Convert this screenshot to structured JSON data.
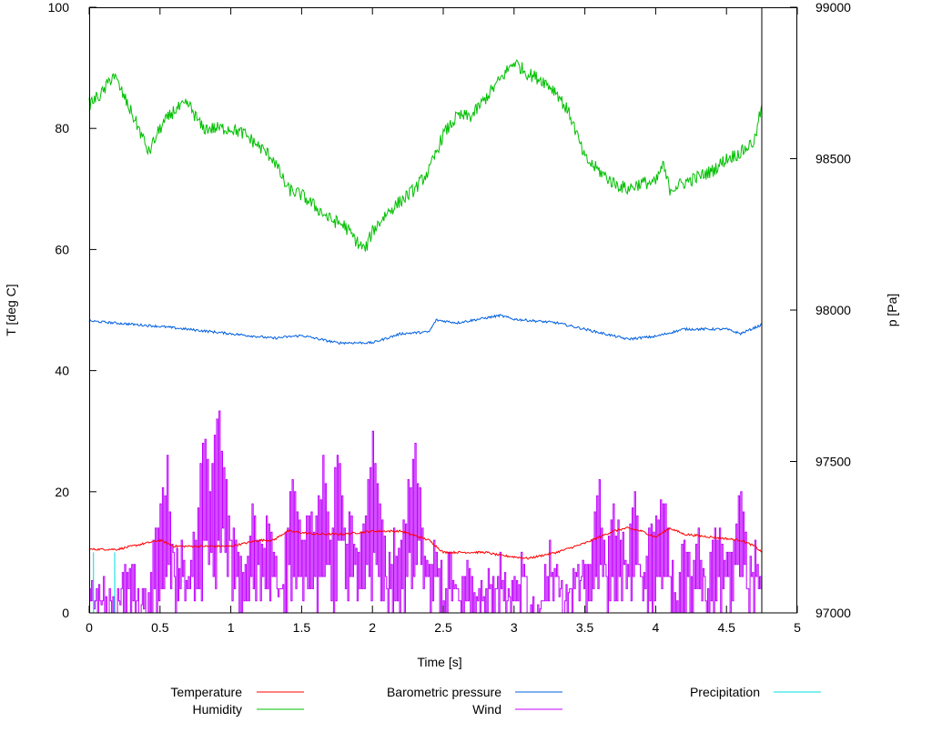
{
  "chart_data": {
    "type": "line",
    "title": "",
    "xlabel": "Time [s]",
    "ylabel": "T [deg C]",
    "y2label": "p [Pa]",
    "xlim": [
      0,
      5
    ],
    "ylim": [
      0,
      100
    ],
    "y2lim": [
      97000,
      99000
    ],
    "xticks": [
      "0",
      "0.5",
      "1",
      "1.5",
      "2",
      "2.5",
      "3",
      "3.5",
      "4",
      "4.5",
      "5"
    ],
    "yticks": [
      "0",
      "20",
      "40",
      "60",
      "80",
      "100"
    ],
    "y2ticks": [
      "97000",
      "97500",
      "98000",
      "98500",
      "99000"
    ],
    "grid": false,
    "legend_position": "bottom",
    "series": [
      {
        "name": "Temperature",
        "color": "#ff0000",
        "axis": "y",
        "x": [
          0,
          0.2,
          0.3,
          0.5,
          0.6,
          0.75,
          0.9,
          1.0,
          1.2,
          1.3,
          1.4,
          1.6,
          1.8,
          2.0,
          2.2,
          2.4,
          2.5,
          2.8,
          2.9,
          3.1,
          3.3,
          3.5,
          3.7,
          3.8,
          3.9,
          4.0,
          4.1,
          4.2,
          4.4,
          4.6,
          4.7,
          4.75
        ],
        "y": [
          10.5,
          10.5,
          11,
          12,
          11,
          11,
          11,
          11,
          12,
          12,
          13.5,
          13,
          13,
          13.5,
          13.5,
          12,
          10,
          10,
          9.5,
          9,
          10,
          11.5,
          13.5,
          14,
          13.5,
          12.5,
          14,
          13,
          12.5,
          12,
          11,
          10
        ]
      },
      {
        "name": "Humidity",
        "color": "#00c000",
        "axis": "y",
        "x": [
          0,
          0.1,
          0.17,
          0.25,
          0.35,
          0.42,
          0.5,
          0.6,
          0.7,
          0.8,
          0.9,
          1.0,
          1.1,
          1.2,
          1.3,
          1.4,
          1.5,
          1.6,
          1.7,
          1.8,
          1.9,
          1.95,
          2.0,
          2.1,
          2.2,
          2.3,
          2.4,
          2.5,
          2.6,
          2.7,
          2.8,
          2.9,
          3.0,
          3.1,
          3.2,
          3.3,
          3.4,
          3.5,
          3.6,
          3.7,
          3.8,
          3.9,
          4.0,
          4.05,
          4.1,
          4.2,
          4.3,
          4.4,
          4.5,
          4.6,
          4.7,
          4.75
        ],
        "y": [
          84,
          86,
          89,
          85,
          80,
          76,
          80,
          83,
          84,
          80,
          80,
          80,
          79,
          77,
          75,
          70,
          69,
          67,
          65,
          64,
          61,
          60,
          63,
          66,
          68,
          70,
          73,
          79,
          82,
          82,
          85,
          88,
          91,
          89,
          88,
          86,
          82,
          75,
          73,
          71,
          70,
          71,
          71,
          74,
          70,
          71,
          72,
          73,
          75,
          76,
          78,
          84
        ]
      },
      {
        "name": "Barometric pressure",
        "color": "#0060e0",
        "axis": "y2",
        "x": [
          0,
          0.5,
          1.0,
          1.3,
          1.5,
          1.75,
          2.0,
          2.2,
          2.4,
          2.45,
          2.6,
          2.9,
          3.0,
          3.3,
          3.5,
          3.8,
          4.0,
          4.2,
          4.5,
          4.6,
          4.75
        ],
        "y": [
          97964,
          97946,
          97922,
          97907,
          97916,
          97892,
          97892,
          97922,
          97928,
          97967,
          97958,
          97982,
          97970,
          97958,
          97937,
          97904,
          97913,
          97937,
          97937,
          97922,
          97952
        ]
      },
      {
        "name": "Wind",
        "color": "#c000ff",
        "axis": "y",
        "x": [
          0,
          0.05,
          0.1,
          0.15,
          0.2,
          0.25,
          0.3,
          0.35,
          0.4,
          0.45,
          0.5,
          0.55,
          0.6,
          0.65,
          0.7,
          0.75,
          0.8,
          0.85,
          0.9,
          0.95,
          1.0,
          1.05,
          1.1,
          1.15,
          1.2,
          1.25,
          1.3,
          1.35,
          1.4,
          1.45,
          1.5,
          1.55,
          1.6,
          1.65,
          1.7,
          1.75,
          1.8,
          1.85,
          1.9,
          1.95,
          2.0,
          2.05,
          2.1,
          2.15,
          2.2,
          2.25,
          2.3,
          2.35,
          2.4,
          2.45,
          2.5,
          2.55,
          2.6,
          2.65,
          2.7,
          2.75,
          2.8,
          2.85,
          2.9,
          2.95,
          3.0,
          3.05,
          3.1,
          3.15,
          3.2,
          3.25,
          3.3,
          3.35,
          3.4,
          3.45,
          3.5,
          3.55,
          3.6,
          3.65,
          3.7,
          3.75,
          3.8,
          3.85,
          3.9,
          3.95,
          4.0,
          4.05,
          4.1,
          4.15,
          4.2,
          4.25,
          4.3,
          4.35,
          4.4,
          4.45,
          4.5,
          4.55,
          4.6,
          4.65,
          4.7,
          4.75
        ],
        "y": [
          4,
          2,
          4,
          0,
          2,
          6,
          8,
          2,
          0,
          10,
          16,
          24,
          8,
          10,
          6,
          14,
          30,
          20,
          34,
          26,
          14,
          8,
          6,
          16,
          10,
          14,
          10,
          2,
          16,
          22,
          12,
          18,
          14,
          24,
          10,
          28,
          12,
          16,
          8,
          18,
          30,
          20,
          6,
          12,
          10,
          20,
          28,
          14,
          6,
          12,
          4,
          10,
          2,
          8,
          4,
          2,
          6,
          4,
          10,
          2,
          4,
          8,
          2,
          0,
          4,
          10,
          6,
          2,
          4,
          8,
          6,
          12,
          20,
          8,
          16,
          12,
          10,
          18,
          6,
          14,
          16,
          20,
          8,
          4,
          12,
          6,
          14,
          4,
          10,
          16,
          8,
          14,
          22,
          6,
          10,
          4
        ]
      },
      {
        "name": "Precipitation",
        "color": "#00e0e0",
        "axis": "y",
        "x": [
          0,
          0.03,
          0.03,
          0.031,
          0.18,
          0.18,
          0.181,
          4.75
        ],
        "y": [
          0,
          0,
          10,
          0,
          0,
          10,
          0,
          0
        ]
      }
    ]
  }
}
